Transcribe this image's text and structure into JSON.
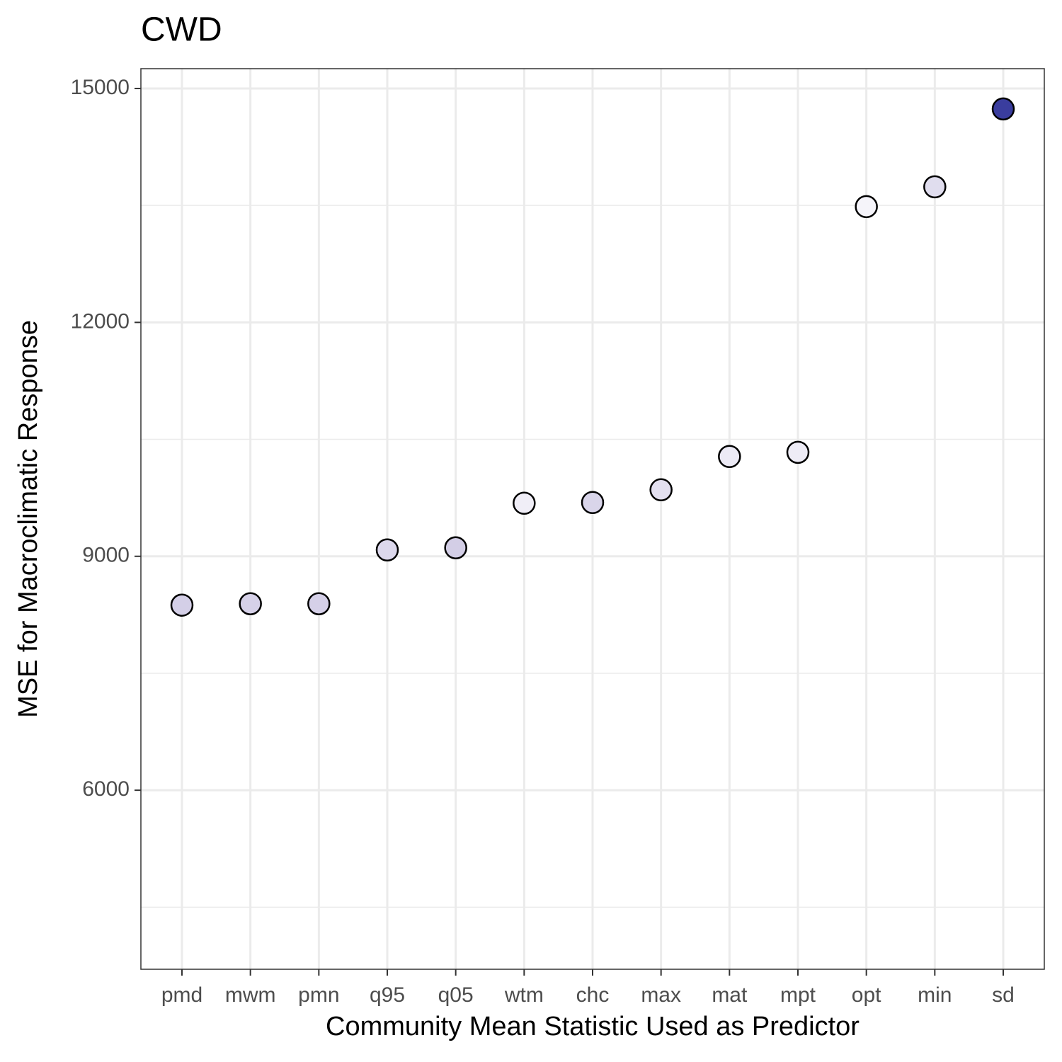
{
  "chart_data": {
    "type": "dot",
    "title": "CWD",
    "x_label": "Community Mean Statistic Used as Predictor",
    "y_label": "MSE for Macroclimatic Response",
    "categories": [
      "pmd",
      "mwm",
      "pmn",
      "q95",
      "q05",
      "wtm",
      "chc",
      "max",
      "mat",
      "mpt",
      "opt",
      "min",
      "sd"
    ],
    "values": [
      8374,
      8392,
      8392,
      9082,
      9109,
      9681,
      9690,
      9853,
      10280,
      10334,
      13485,
      13739,
      14737
    ],
    "colors": [
      "#d4cfe7",
      "#d6d1e8",
      "#d5d0e8",
      "#dcd8ec",
      "#d3cee6",
      "#f0eef7",
      "#d9d5ea",
      "#e3e0f0",
      "#eceaf5",
      "#eeecf6",
      "#f5f4fa",
      "#e0ddee",
      "#3a3d9e"
    ],
    "ylim": [
      3704,
      15254
    ],
    "yticks": [
      6000,
      9000,
      12000,
      15000
    ],
    "minor_grid": [
      4500,
      7500,
      10500,
      13500
    ],
    "grid": true
  }
}
